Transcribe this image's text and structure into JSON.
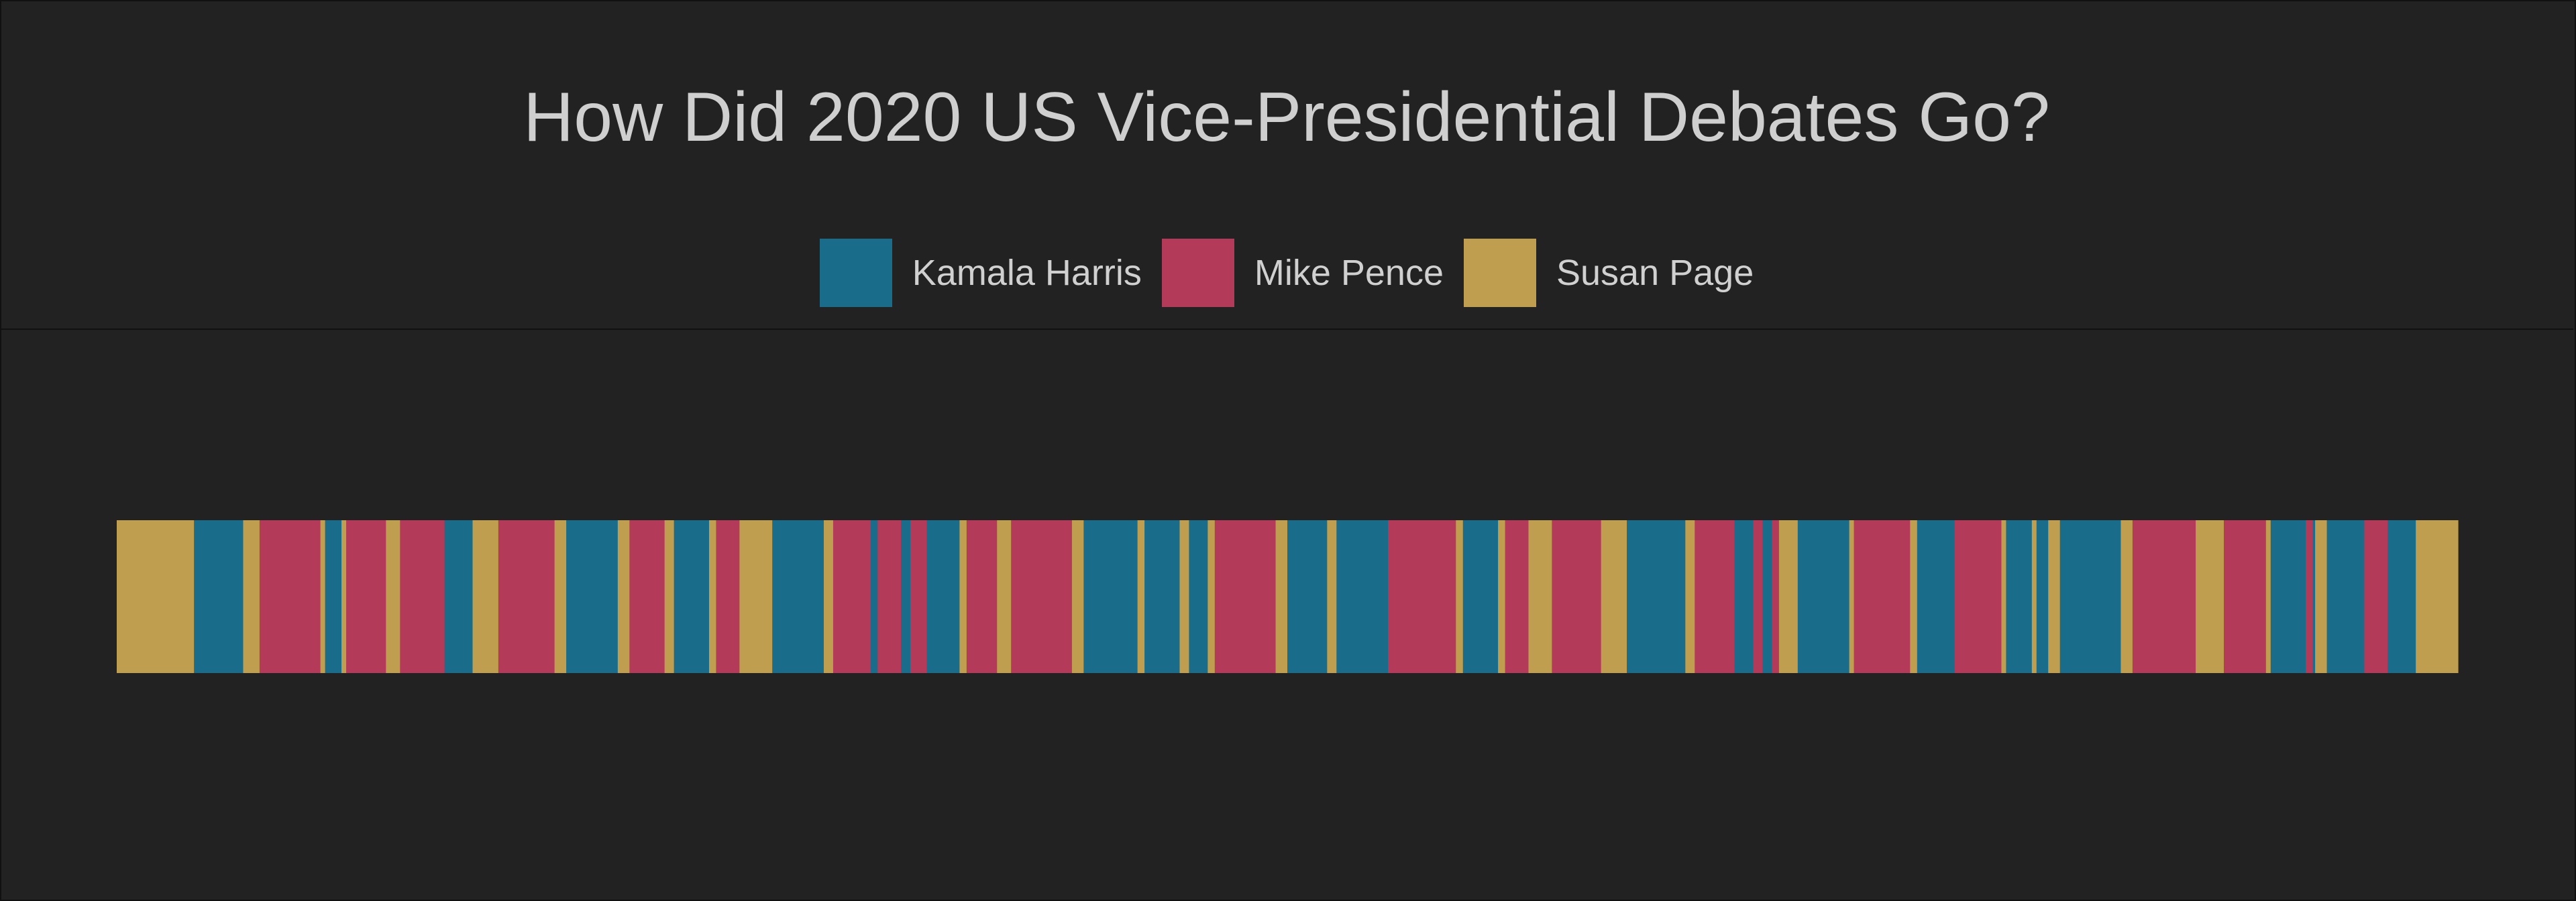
{
  "title": "How Did 2020 US Vice-Presidential Debates Go?",
  "colors": {
    "background": "#222222",
    "Kamala Harris": "#196c8a",
    "Mike Pence": "#b33b59",
    "Susan Page": "#bf9e4f"
  },
  "legend": [
    {
      "label": "Kamala Harris",
      "color": "#196c8a"
    },
    {
      "label": "Mike Pence",
      "color": "#b33b59"
    },
    {
      "label": "Susan Page",
      "color": "#bf9e4f"
    }
  ],
  "chart_data": {
    "type": "bar",
    "title": "How Did 2020 US Vice-Presidential Debates Go?",
    "xlabel": "",
    "ylabel": "",
    "legend_position": "top-center",
    "grid": false,
    "series": [
      {
        "name": "Kamala Harris",
        "color": "#196c8a"
      },
      {
        "name": "Mike Pence",
        "color": "#b33b59"
      },
      {
        "name": "Susan Page",
        "color": "#bf9e4f"
      }
    ],
    "xlim": [
      0,
      1
    ],
    "segments": [
      {
        "speaker": "Susan Page",
        "start": 0.0,
        "end": 0.033
      },
      {
        "speaker": "Kamala Harris",
        "start": 0.033,
        "end": 0.054
      },
      {
        "speaker": "Susan Page",
        "start": 0.054,
        "end": 0.061
      },
      {
        "speaker": "Mike Pence",
        "start": 0.061,
        "end": 0.087
      },
      {
        "speaker": "Susan Page",
        "start": 0.087,
        "end": 0.089
      },
      {
        "speaker": "Kamala Harris",
        "start": 0.089,
        "end": 0.096
      },
      {
        "speaker": "Susan Page",
        "start": 0.096,
        "end": 0.098
      },
      {
        "speaker": "Mike Pence",
        "start": 0.098,
        "end": 0.115
      },
      {
        "speaker": "Susan Page",
        "start": 0.115,
        "end": 0.121
      },
      {
        "speaker": "Mike Pence",
        "start": 0.121,
        "end": 0.14
      },
      {
        "speaker": "Kamala Harris",
        "start": 0.14,
        "end": 0.152
      },
      {
        "speaker": "Susan Page",
        "start": 0.152,
        "end": 0.163
      },
      {
        "speaker": "Mike Pence",
        "start": 0.163,
        "end": 0.187
      },
      {
        "speaker": "Susan Page",
        "start": 0.187,
        "end": 0.192
      },
      {
        "speaker": "Kamala Harris",
        "start": 0.192,
        "end": 0.214
      },
      {
        "speaker": "Susan Page",
        "start": 0.214,
        "end": 0.219
      },
      {
        "speaker": "Mike Pence",
        "start": 0.219,
        "end": 0.234
      },
      {
        "speaker": "Susan Page",
        "start": 0.234,
        "end": 0.238
      },
      {
        "speaker": "Kamala Harris",
        "start": 0.238,
        "end": 0.253
      },
      {
        "speaker": "Susan Page",
        "start": 0.253,
        "end": 0.256
      },
      {
        "speaker": "Mike Pence",
        "start": 0.256,
        "end": 0.266
      },
      {
        "speaker": "Susan Page",
        "start": 0.266,
        "end": 0.28
      },
      {
        "speaker": "Kamala Harris",
        "start": 0.28,
        "end": 0.302
      },
      {
        "speaker": "Susan Page",
        "start": 0.302,
        "end": 0.306
      },
      {
        "speaker": "Mike Pence",
        "start": 0.306,
        "end": 0.322
      },
      {
        "speaker": "Kamala Harris",
        "start": 0.322,
        "end": 0.325
      },
      {
        "speaker": "Mike Pence",
        "start": 0.325,
        "end": 0.335
      },
      {
        "speaker": "Kamala Harris",
        "start": 0.335,
        "end": 0.339
      },
      {
        "speaker": "Mike Pence",
        "start": 0.339,
        "end": 0.346
      },
      {
        "speaker": "Kamala Harris",
        "start": 0.346,
        "end": 0.36
      },
      {
        "speaker": "Susan Page",
        "start": 0.36,
        "end": 0.363
      },
      {
        "speaker": "Mike Pence",
        "start": 0.363,
        "end": 0.376
      },
      {
        "speaker": "Susan Page",
        "start": 0.376,
        "end": 0.382
      },
      {
        "speaker": "Mike Pence",
        "start": 0.382,
        "end": 0.408
      },
      {
        "speaker": "Susan Page",
        "start": 0.408,
        "end": 0.413
      },
      {
        "speaker": "Kamala Harris",
        "start": 0.413,
        "end": 0.436
      },
      {
        "speaker": "Susan Page",
        "start": 0.436,
        "end": 0.439
      },
      {
        "speaker": "Kamala Harris",
        "start": 0.439,
        "end": 0.454
      },
      {
        "speaker": "Susan Page",
        "start": 0.454,
        "end": 0.458
      },
      {
        "speaker": "Kamala Harris",
        "start": 0.458,
        "end": 0.466
      },
      {
        "speaker": "Susan Page",
        "start": 0.466,
        "end": 0.469
      },
      {
        "speaker": "Mike Pence",
        "start": 0.469,
        "end": 0.495
      },
      {
        "speaker": "Susan Page",
        "start": 0.495,
        "end": 0.5
      },
      {
        "speaker": "Kamala Harris",
        "start": 0.5,
        "end": 0.517
      },
      {
        "speaker": "Susan Page",
        "start": 0.517,
        "end": 0.521
      },
      {
        "speaker": "Kamala Harris",
        "start": 0.521,
        "end": 0.543
      },
      {
        "speaker": "Mike Pence",
        "start": 0.543,
        "end": 0.572
      },
      {
        "speaker": "Susan Page",
        "start": 0.572,
        "end": 0.575
      },
      {
        "speaker": "Kamala Harris",
        "start": 0.575,
        "end": 0.59
      },
      {
        "speaker": "Susan Page",
        "start": 0.59,
        "end": 0.593
      },
      {
        "speaker": "Mike Pence",
        "start": 0.593,
        "end": 0.603
      },
      {
        "speaker": "Susan Page",
        "start": 0.603,
        "end": 0.613
      },
      {
        "speaker": "Mike Pence",
        "start": 0.613,
        "end": 0.634
      },
      {
        "speaker": "Susan Page",
        "start": 0.634,
        "end": 0.645
      },
      {
        "speaker": "Kamala Harris",
        "start": 0.645,
        "end": 0.67
      },
      {
        "speaker": "Susan Page",
        "start": 0.67,
        "end": 0.674
      },
      {
        "speaker": "Mike Pence",
        "start": 0.674,
        "end": 0.691
      },
      {
        "speaker": "Kamala Harris",
        "start": 0.691,
        "end": 0.699
      },
      {
        "speaker": "Mike Pence",
        "start": 0.699,
        "end": 0.703
      },
      {
        "speaker": "Kamala Harris",
        "start": 0.703,
        "end": 0.707
      },
      {
        "speaker": "Mike Pence",
        "start": 0.707,
        "end": 0.71
      },
      {
        "speaker": "Susan Page",
        "start": 0.71,
        "end": 0.718
      },
      {
        "speaker": "Kamala Harris",
        "start": 0.718,
        "end": 0.74
      },
      {
        "speaker": "Susan Page",
        "start": 0.74,
        "end": 0.742
      },
      {
        "speaker": "Mike Pence",
        "start": 0.742,
        "end": 0.766
      },
      {
        "speaker": "Susan Page",
        "start": 0.766,
        "end": 0.769
      },
      {
        "speaker": "Kamala Harris",
        "start": 0.769,
        "end": 0.785
      },
      {
        "speaker": "Mike Pence",
        "start": 0.785,
        "end": 0.805
      },
      {
        "speaker": "Susan Page",
        "start": 0.805,
        "end": 0.807
      },
      {
        "speaker": "Kamala Harris",
        "start": 0.807,
        "end": 0.818
      },
      {
        "speaker": "Susan Page",
        "start": 0.818,
        "end": 0.82
      },
      {
        "speaker": "Kamala Harris",
        "start": 0.82,
        "end": 0.825
      },
      {
        "speaker": "Susan Page",
        "start": 0.825,
        "end": 0.83
      },
      {
        "speaker": "Kamala Harris",
        "start": 0.83,
        "end": 0.856
      },
      {
        "speaker": "Susan Page",
        "start": 0.856,
        "end": 0.861
      },
      {
        "speaker": "Mike Pence",
        "start": 0.861,
        "end": 0.888
      },
      {
        "speaker": "Susan Page",
        "start": 0.888,
        "end": 0.9
      },
      {
        "speaker": "Mike Pence",
        "start": 0.9,
        "end": 0.918
      },
      {
        "speaker": "Susan Page",
        "start": 0.918,
        "end": 0.92
      },
      {
        "speaker": "Kamala Harris",
        "start": 0.92,
        "end": 0.935
      },
      {
        "speaker": "Mike Pence",
        "start": 0.935,
        "end": 0.938
      },
      {
        "speaker": "Kamala Harris",
        "start": 0.938,
        "end": 0.939
      },
      {
        "speaker": "Susan Page",
        "start": 0.939,
        "end": 0.944
      },
      {
        "speaker": "Kamala Harris",
        "start": 0.944,
        "end": 0.96
      },
      {
        "speaker": "Mike Pence",
        "start": 0.96,
        "end": 0.97
      },
      {
        "speaker": "Kamala Harris",
        "start": 0.97,
        "end": 0.982
      },
      {
        "speaker": "Susan Page",
        "start": 0.982,
        "end": 1.0
      }
    ]
  }
}
